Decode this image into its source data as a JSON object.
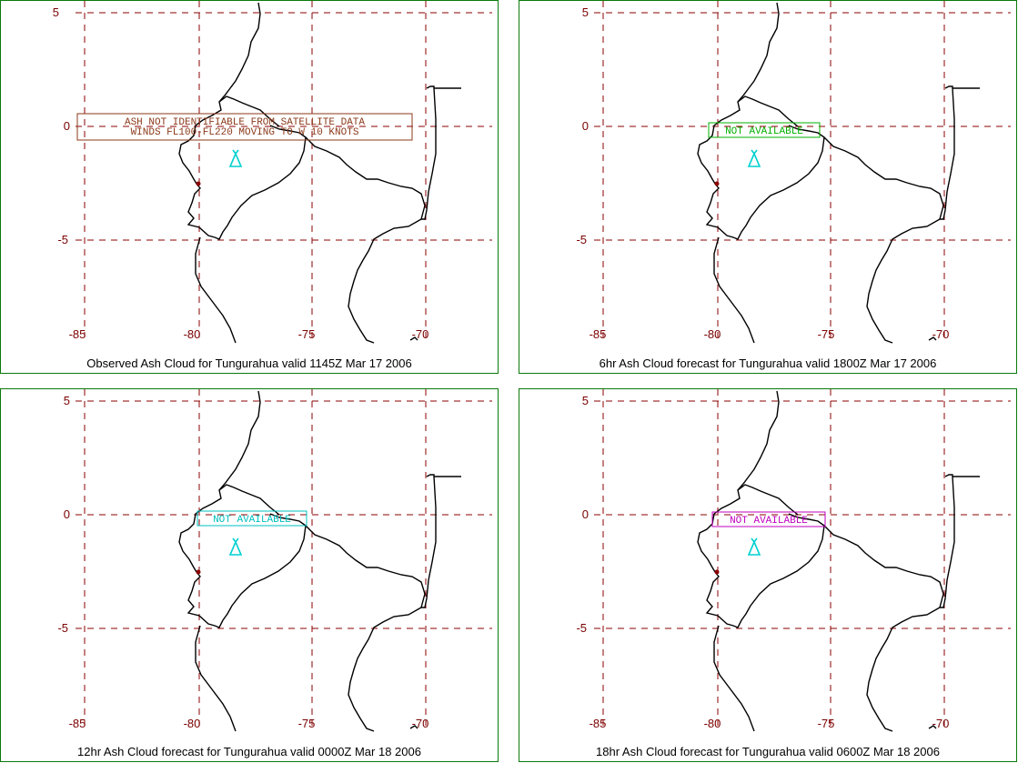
{
  "map": {
    "lon_ticks": [
      "-85",
      "-80",
      "-75",
      "-70"
    ],
    "lat_ticks": [
      "5",
      "0",
      "-5"
    ],
    "gridline_color": "#8b0000",
    "coast_color": "#000000",
    "volcano_symbol_color": "#00d0d0",
    "panel_border_color": "#0a7a0a"
  },
  "panels": [
    {
      "caption": "Observed Ash Cloud for Tungurahua valid 1145Z Mar 17 2006",
      "advisory": {
        "line1": "ASH NOT IDENTIFIABLE FROM SATELLITE DATA",
        "line2": "WINDS FL100-FL220 MOVING TO W 10 KNOTS",
        "color": "#8b3a1a"
      }
    },
    {
      "caption": "6hr Ash Cloud forecast for Tungurahua valid 1800Z Mar 17 2006",
      "advisory": {
        "line1": "NOT AVAILABLE",
        "color": "#00b000"
      }
    },
    {
      "caption": "12hr Ash Cloud forecast for Tungurahua valid 0000Z Mar 18 2006",
      "advisory": {
        "line1": "NOT AVAILABLE",
        "color": "#00c0c0"
      }
    },
    {
      "caption": "18hr Ash Cloud forecast for Tungurahua valid 0600Z Mar 18 2006",
      "advisory": {
        "line1": "NOT AVAILABLE",
        "color": "#c000c0"
      }
    }
  ]
}
